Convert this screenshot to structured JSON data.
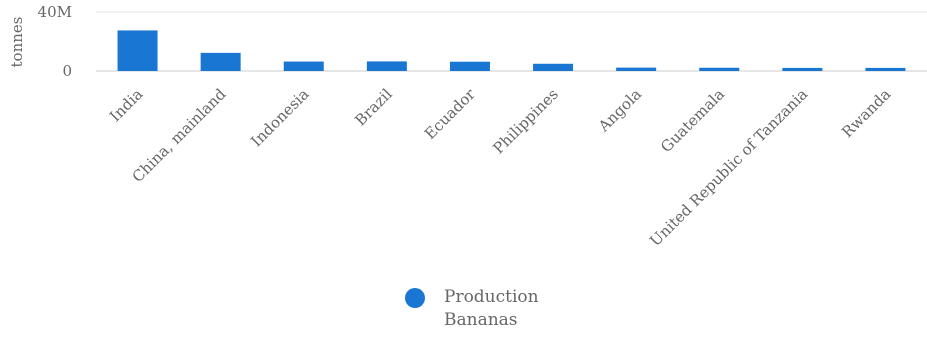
{
  "chart_data": {
    "type": "bar",
    "categories": [
      "India",
      "China, mainland",
      "Indonesia",
      "Brazil",
      "Ecuador",
      "Philippines",
      "Angola",
      "Guatemala",
      "United Republic of Tanzania",
      "Rwanda"
    ],
    "series": [
      {
        "name": "Production Bananas",
        "values": [
          27.5,
          12.3,
          6.4,
          6.5,
          6.3,
          4.9,
          2.3,
          2.2,
          2.1,
          2.1
        ]
      }
    ],
    "ylabel": "tonnes",
    "y_ticks": [
      {
        "value": 0,
        "label": "0"
      },
      {
        "value": 40,
        "label": "40M"
      }
    ],
    "ylim": [
      0,
      40
    ],
    "grid": true,
    "legend_position": "bottom",
    "bar_color": "#1976d2"
  }
}
